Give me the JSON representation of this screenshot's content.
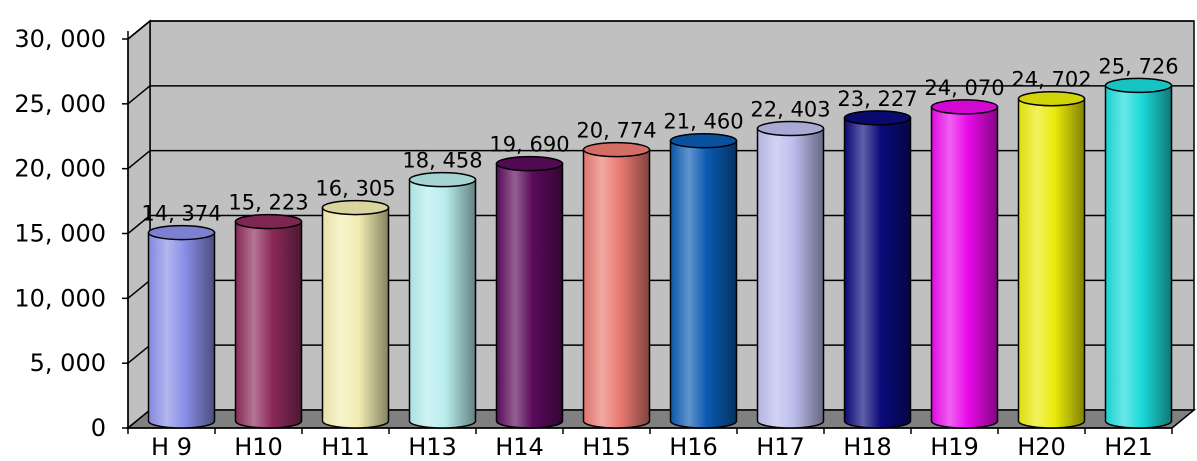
{
  "chart_data": {
    "type": "bar",
    "style": "3d-cylinder",
    "categories": [
      "H 9",
      "H10",
      "H11",
      "H13",
      "H14",
      "H15",
      "H16",
      "H17",
      "H18",
      "H19",
      "H20",
      "H21"
    ],
    "values": [
      14374,
      15223,
      16305,
      18458,
      19690,
      20774,
      21460,
      22403,
      23227,
      24070,
      24702,
      25726
    ],
    "data_labels": [
      "14, 374",
      "15, 223",
      "16, 305",
      "18, 458",
      "19, 690",
      "20, 774",
      "21, 460",
      "22, 403",
      "23, 227",
      "24, 070",
      "24, 702",
      "25, 726"
    ],
    "y_ticks": [
      0,
      5000,
      10000,
      15000,
      20000,
      25000,
      30000
    ],
    "y_tick_labels": [
      "0",
      "5, 000",
      "10, 000",
      "15, 000",
      "20, 000",
      "25, 000",
      "30, 000"
    ],
    "ylim": [
      0,
      30000
    ],
    "grid": true,
    "legend": "none",
    "colors": [
      "#8a8ee6",
      "#8c2a5a",
      "#f2ecb0",
      "#b6ecec",
      "#5a0a5a",
      "#ea7a72",
      "#0a5ab0",
      "#bcbcec",
      "#0a0a7a",
      "#ea0aea",
      "#eaea0a",
      "#1adada"
    ],
    "wall_color": "#c0c0c0",
    "floor_color": "#808080"
  }
}
